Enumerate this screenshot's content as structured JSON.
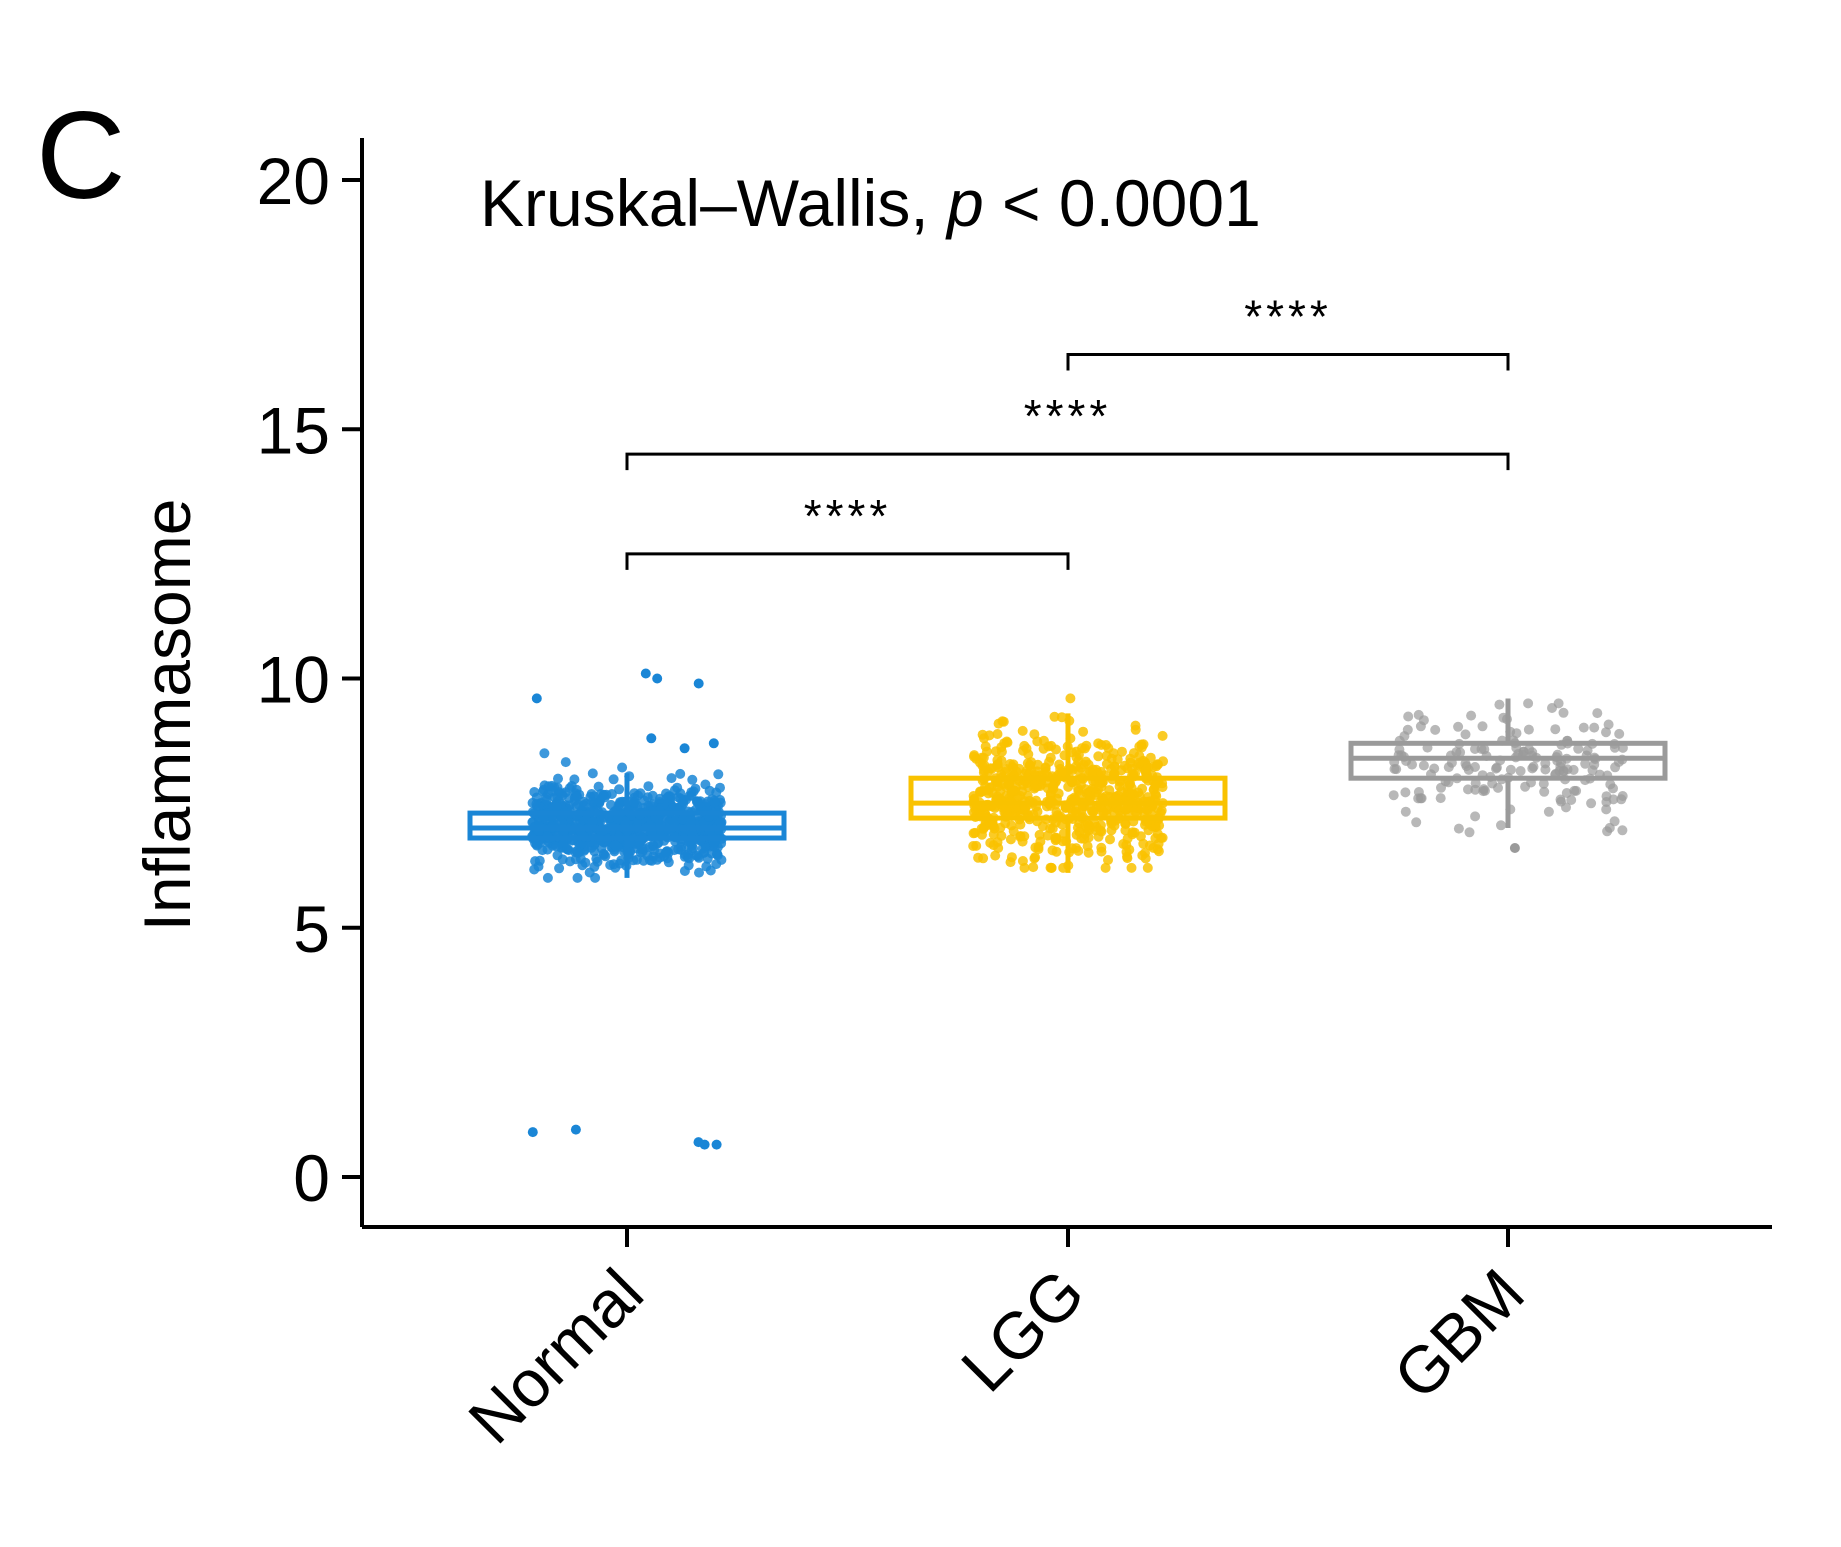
{
  "panel_label": "C",
  "colors": {
    "Normal": "#1a86d6",
    "LGG": "#f9c200",
    "GBM": "#9a9a9a",
    "axis": "#000000"
  },
  "chart_data": {
    "type": "box",
    "title": "",
    "annotation_test": "Kruskal–Wallis, ",
    "annotation_p_symbol": "p",
    "annotation_p_value": " < 0.0001",
    "ylabel": "Inflammasome",
    "xlabel": "",
    "ylim": [
      -1,
      21
    ],
    "yticks": [
      0,
      5,
      10,
      15,
      20
    ],
    "categories": [
      "Normal",
      "LGG",
      "GBM"
    ],
    "series": [
      {
        "name": "Normal",
        "q1": 6.8,
        "median": 7.0,
        "q3": 7.3,
        "whisker_low": 6.0,
        "whisker_high": 8.1,
        "point_range": [
          6.0,
          8.5
        ],
        "outliers": [
          0.7,
          0.65,
          0.65,
          0.9,
          0.95,
          10.0,
          10.1,
          9.9,
          9.6,
          8.8,
          8.7,
          8.6
        ]
      },
      {
        "name": "LGG",
        "q1": 7.2,
        "median": 7.5,
        "q3": 8.0,
        "whisker_low": 6.1,
        "whisker_high": 9.3,
        "point_range": [
          6.2,
          9.6
        ],
        "outliers": []
      },
      {
        "name": "GBM",
        "q1": 8.0,
        "median": 8.4,
        "q3": 8.7,
        "whisker_low": 7.0,
        "whisker_high": 9.6,
        "point_range": [
          6.8,
          9.5
        ],
        "outliers": [
          6.6
        ]
      }
    ],
    "comparisons": [
      {
        "from": "Normal",
        "to": "LGG",
        "y": 12.5,
        "label": "****"
      },
      {
        "from": "Normal",
        "to": "GBM",
        "y": 14.5,
        "label": "****"
      },
      {
        "from": "LGG",
        "to": "GBM",
        "y": 16.5,
        "label": "****"
      }
    ],
    "grid": false,
    "legend": "none"
  }
}
